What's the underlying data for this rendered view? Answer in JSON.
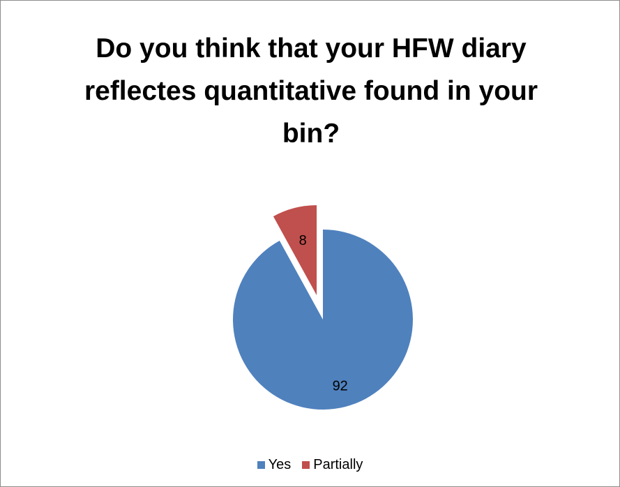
{
  "chart_data": {
    "type": "pie",
    "title": "Do you think that your HFW diary reflectes quantitative found in your bin?",
    "categories": [
      "Yes",
      "Partially"
    ],
    "values": [
      92,
      8
    ],
    "data_labels": [
      "92",
      "8"
    ],
    "exploded": [
      "Partially"
    ],
    "colors": [
      "#4f81bd",
      "#c0504d"
    ],
    "legend_position": "bottom"
  }
}
